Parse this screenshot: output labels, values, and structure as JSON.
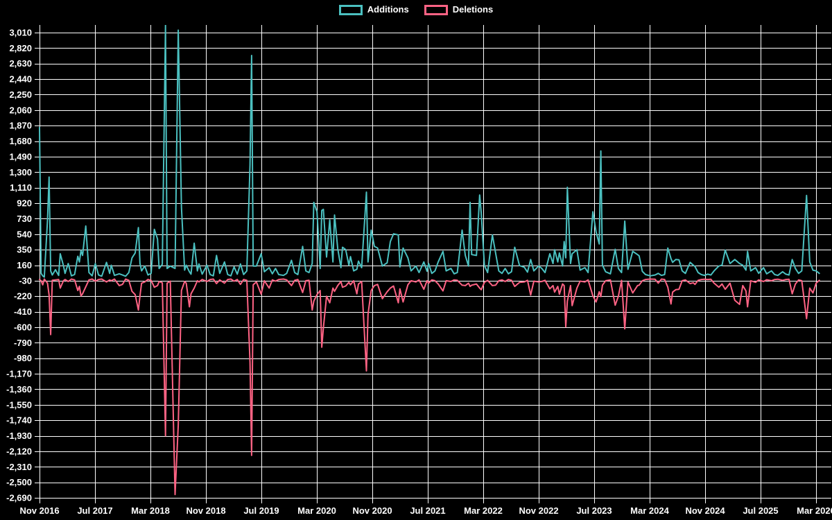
{
  "colors": {
    "background": "#000000",
    "grid": "#ffffff",
    "text": "#ffffff",
    "additions": "#4bc0c0",
    "deletions": "#ff6384"
  },
  "legend": {
    "items": [
      {
        "label": "Additions",
        "color": "#4bc0c0"
      },
      {
        "label": "Deletions",
        "color": "#ff6384"
      }
    ]
  },
  "chart_data": {
    "type": "line",
    "title": "",
    "xlabel": "",
    "ylabel": "",
    "grid": true,
    "legend_position": "top-center",
    "x_axis": {
      "labels": [
        "Nov 2016",
        "Jul 2017",
        "Mar 2018",
        "Nov 2018",
        "Jul 2019",
        "Mar 2020",
        "Nov 2020",
        "Jul 2021",
        "Mar 2022",
        "Nov 2022",
        "Jul 2023",
        "Mar 2024",
        "Nov 2024",
        "Jul 2025",
        "Mar 2026"
      ],
      "months_per_label": 8,
      "unit": "weeks since Nov 2016"
    },
    "y_axis": {
      "min": -2690,
      "max": 3010,
      "step": 190,
      "tick_labels": [
        "3,010",
        "2,820",
        "2,630",
        "2,440",
        "2,250",
        "2,060",
        "1,870",
        "1,680",
        "1,490",
        "1,300",
        "1,110",
        "920",
        "730",
        "540",
        "350",
        "160",
        "-30",
        "-220",
        "-410",
        "-600",
        "-790",
        "-980",
        "-1,170",
        "-1,360",
        "-1,550",
        "-1,740",
        "-1,930",
        "-2,120",
        "-2,310",
        "-2,500",
        "-2,690"
      ]
    },
    "series": [
      {
        "name": "Additions",
        "color": "#4bc0c0"
      },
      {
        "name": "Deletions",
        "color": "#ff6384"
      }
    ],
    "points_format": [
      "week_index",
      "additions",
      "deletions"
    ],
    "points": [
      [
        0,
        1850,
        -15
      ],
      [
        1,
        60,
        -30
      ],
      [
        2,
        30,
        -80
      ],
      [
        3,
        15,
        -10
      ],
      [
        5,
        710,
        -60
      ],
      [
        6,
        1240,
        -205
      ],
      [
        7,
        90,
        -690
      ],
      [
        8,
        40,
        -25
      ],
      [
        10,
        105,
        -20
      ],
      [
        12,
        35,
        -15
      ],
      [
        13,
        300,
        -120
      ],
      [
        15,
        155,
        -30
      ],
      [
        16,
        60,
        -15
      ],
      [
        18,
        180,
        -40
      ],
      [
        20,
        30,
        -10
      ],
      [
        22,
        45,
        -20
      ],
      [
        24,
        270,
        -150
      ],
      [
        25,
        200,
        -100
      ],
      [
        26,
        340,
        -215
      ],
      [
        27,
        280,
        -190
      ],
      [
        29,
        640,
        -105
      ],
      [
        31,
        70,
        -20
      ],
      [
        33,
        30,
        -10
      ],
      [
        35,
        180,
        -35
      ],
      [
        37,
        40,
        -15
      ],
      [
        39,
        25,
        -10
      ],
      [
        42,
        195,
        -45
      ],
      [
        44,
        60,
        -20
      ],
      [
        45,
        160,
        -30
      ],
      [
        47,
        35,
        -10
      ],
      [
        50,
        55,
        -90
      ],
      [
        52,
        40,
        -75
      ],
      [
        54,
        25,
        -10
      ],
      [
        56,
        70,
        -25
      ],
      [
        58,
        250,
        -160
      ],
      [
        60,
        310,
        -200
      ],
      [
        62,
        620,
        -390
      ],
      [
        63,
        180,
        -215
      ],
      [
        64,
        90,
        -60
      ],
      [
        66,
        150,
        -45
      ],
      [
        68,
        40,
        -15
      ],
      [
        70,
        60,
        -25
      ],
      [
        72,
        600,
        -110
      ],
      [
        74,
        480,
        -90
      ],
      [
        75,
        120,
        -40
      ],
      [
        77,
        170,
        -55
      ],
      [
        79,
        3100,
        -1930
      ],
      [
        80,
        120,
        -60
      ],
      [
        82,
        150,
        -35
      ],
      [
        85,
        120,
        -2650
      ],
      [
        87,
        3040,
        -1800
      ],
      [
        89,
        870,
        -150
      ],
      [
        91,
        100,
        -40
      ],
      [
        92,
        160,
        -60
      ],
      [
        94,
        80,
        -350
      ],
      [
        95,
        50,
        -190
      ],
      [
        97,
        430,
        -120
      ],
      [
        99,
        90,
        -30
      ],
      [
        100,
        175,
        -45
      ],
      [
        102,
        50,
        -15
      ],
      [
        105,
        160,
        -40
      ],
      [
        107,
        45,
        -15
      ],
      [
        109,
        30,
        -10
      ],
      [
        111,
        280,
        -65
      ],
      [
        113,
        60,
        -20
      ],
      [
        116,
        200,
        -60
      ],
      [
        118,
        45,
        -15
      ],
      [
        120,
        30,
        -10
      ],
      [
        122,
        140,
        -35
      ],
      [
        124,
        50,
        -15
      ],
      [
        126,
        175,
        -75
      ],
      [
        128,
        45,
        -15
      ],
      [
        130,
        90,
        -25
      ],
      [
        132,
        1390,
        -1030
      ],
      [
        133,
        2730,
        -2170
      ],
      [
        134,
        150,
        -80
      ],
      [
        136,
        150,
        -45
      ],
      [
        139,
        300,
        -195
      ],
      [
        141,
        80,
        -30
      ],
      [
        144,
        130,
        -120
      ],
      [
        146,
        55,
        -20
      ],
      [
        148,
        120,
        -35
      ],
      [
        150,
        45,
        -15
      ],
      [
        153,
        35,
        -10
      ],
      [
        155,
        60,
        -20
      ],
      [
        158,
        220,
        -90
      ],
      [
        160,
        70,
        -25
      ],
      [
        162,
        45,
        -15
      ],
      [
        165,
        390,
        -175
      ],
      [
        167,
        90,
        -30
      ],
      [
        169,
        70,
        -25
      ],
      [
        171,
        180,
        -390
      ],
      [
        172,
        930,
        -280
      ],
      [
        174,
        815,
        -200
      ],
      [
        176,
        120,
        -150
      ],
      [
        177,
        830,
        -845
      ],
      [
        178,
        845,
        -610
      ],
      [
        180,
        260,
        -220
      ],
      [
        182,
        715,
        -300
      ],
      [
        184,
        200,
        -120
      ],
      [
        185,
        775,
        -160
      ],
      [
        187,
        365,
        -90
      ],
      [
        189,
        130,
        -40
      ],
      [
        190,
        380,
        -110
      ],
      [
        192,
        350,
        -95
      ],
      [
        194,
        160,
        -50
      ],
      [
        195,
        265,
        -80
      ],
      [
        197,
        90,
        -30
      ],
      [
        199,
        110,
        -190
      ],
      [
        200,
        210,
        -70
      ],
      [
        202,
        130,
        -40
      ],
      [
        205,
        1055,
        -1135
      ],
      [
        206,
        200,
        -440
      ],
      [
        208,
        590,
        -150
      ],
      [
        210,
        390,
        -90
      ],
      [
        212,
        370,
        -75
      ],
      [
        215,
        150,
        -250
      ],
      [
        218,
        190,
        -165
      ],
      [
        220,
        450,
        -120
      ],
      [
        222,
        545,
        -95
      ],
      [
        225,
        530,
        -300
      ],
      [
        226,
        140,
        -130
      ],
      [
        228,
        370,
        -290
      ],
      [
        231,
        250,
        -80
      ],
      [
        233,
        90,
        -30
      ],
      [
        236,
        150,
        -45
      ],
      [
        238,
        70,
        -20
      ],
      [
        241,
        200,
        -135
      ],
      [
        243,
        85,
        -30
      ],
      [
        244,
        180,
        -60
      ],
      [
        246,
        60,
        -20
      ],
      [
        248,
        90,
        -30
      ],
      [
        250,
        200,
        -70
      ],
      [
        253,
        330,
        -155
      ],
      [
        255,
        90,
        -30
      ],
      [
        258,
        120,
        -40
      ],
      [
        260,
        55,
        -20
      ],
      [
        262,
        70,
        -25
      ],
      [
        265,
        590,
        -85
      ],
      [
        267,
        280,
        -90
      ],
      [
        269,
        150,
        -60
      ],
      [
        270,
        930,
        -100
      ],
      [
        271,
        290,
        -85
      ],
      [
        274,
        280,
        -70
      ],
      [
        276,
        1020,
        -120
      ],
      [
        277,
        800,
        -140
      ],
      [
        279,
        155,
        -50
      ],
      [
        281,
        70,
        -25
      ],
      [
        284,
        530,
        -90
      ],
      [
        286,
        310,
        -85
      ],
      [
        288,
        90,
        -30
      ],
      [
        290,
        60,
        -20
      ],
      [
        292,
        120,
        -40
      ],
      [
        294,
        55,
        -15
      ],
      [
        296,
        80,
        -25
      ],
      [
        298,
        380,
        -100
      ],
      [
        301,
        155,
        -50
      ],
      [
        304,
        135,
        -45
      ],
      [
        306,
        75,
        -25
      ],
      [
        308,
        230,
        -205
      ],
      [
        310,
        90,
        -35
      ],
      [
        313,
        150,
        -45
      ],
      [
        315,
        120,
        -40
      ],
      [
        317,
        70,
        -25
      ],
      [
        320,
        300,
        -130
      ],
      [
        322,
        180,
        -90
      ],
      [
        323,
        350,
        -170
      ],
      [
        325,
        200,
        -100
      ],
      [
        326,
        310,
        -195
      ],
      [
        328,
        150,
        -70
      ],
      [
        329,
        450,
        -90
      ],
      [
        330,
        250,
        -595
      ],
      [
        331,
        1115,
        -280
      ],
      [
        333,
        180,
        -90
      ],
      [
        334,
        300,
        -335
      ],
      [
        337,
        350,
        -120
      ],
      [
        339,
        100,
        -35
      ],
      [
        342,
        130,
        -45
      ],
      [
        344,
        70,
        -20
      ],
      [
        347,
        815,
        -215
      ],
      [
        349,
        570,
        -290
      ],
      [
        351,
        420,
        -165
      ],
      [
        352,
        1560,
        -225
      ],
      [
        353,
        160,
        -85
      ],
      [
        355,
        80,
        -30
      ],
      [
        358,
        55,
        -20
      ],
      [
        361,
        355,
        -330
      ],
      [
        363,
        120,
        -220
      ],
      [
        365,
        70,
        -25
      ],
      [
        367,
        700,
        -620
      ],
      [
        369,
        110,
        -45
      ],
      [
        372,
        330,
        -180
      ],
      [
        375,
        290,
        -90
      ],
      [
        376,
        275,
        -85
      ],
      [
        378,
        85,
        -30
      ],
      [
        380,
        45,
        -15
      ],
      [
        383,
        30,
        -10
      ],
      [
        386,
        40,
        -12
      ],
      [
        388,
        60,
        -60
      ],
      [
        390,
        35,
        -10
      ],
      [
        392,
        45,
        -15
      ],
      [
        394,
        370,
        -110
      ],
      [
        396,
        240,
        -315
      ],
      [
        397,
        195,
        -170
      ],
      [
        399,
        230,
        -140
      ],
      [
        401,
        225,
        -135
      ],
      [
        403,
        90,
        -30
      ],
      [
        405,
        60,
        -20
      ],
      [
        408,
        195,
        -65
      ],
      [
        410,
        160,
        -55
      ],
      [
        411,
        145,
        -75
      ],
      [
        413,
        70,
        -25
      ],
      [
        415,
        45,
        -15
      ],
      [
        417,
        35,
        -12
      ],
      [
        419,
        50,
        -15
      ],
      [
        421,
        40,
        -12
      ],
      [
        423,
        90,
        -60
      ],
      [
        426,
        150,
        -110
      ],
      [
        428,
        160,
        -70
      ],
      [
        430,
        345,
        -135
      ],
      [
        433,
        180,
        -60
      ],
      [
        436,
        230,
        -270
      ],
      [
        439,
        180,
        -320
      ],
      [
        441,
        160,
        -90
      ],
      [
        443,
        100,
        -155
      ],
      [
        444,
        330,
        -350
      ],
      [
        446,
        90,
        -30
      ],
      [
        449,
        130,
        -50
      ],
      [
        451,
        60,
        -20
      ],
      [
        454,
        130,
        -40
      ],
      [
        456,
        55,
        -18
      ],
      [
        459,
        90,
        -30
      ],
      [
        461,
        45,
        -15
      ],
      [
        463,
        35,
        -12
      ],
      [
        466,
        80,
        -25
      ],
      [
        468,
        50,
        -15
      ],
      [
        470,
        40,
        -12
      ],
      [
        472,
        230,
        -190
      ],
      [
        474,
        120,
        -70
      ],
      [
        476,
        60,
        -20
      ],
      [
        478,
        90,
        -30
      ],
      [
        481,
        1015,
        -495
      ],
      [
        483,
        200,
        -120
      ],
      [
        485,
        100,
        -180
      ],
      [
        487,
        90,
        -60
      ],
      [
        489,
        60,
        -25
      ]
    ]
  }
}
